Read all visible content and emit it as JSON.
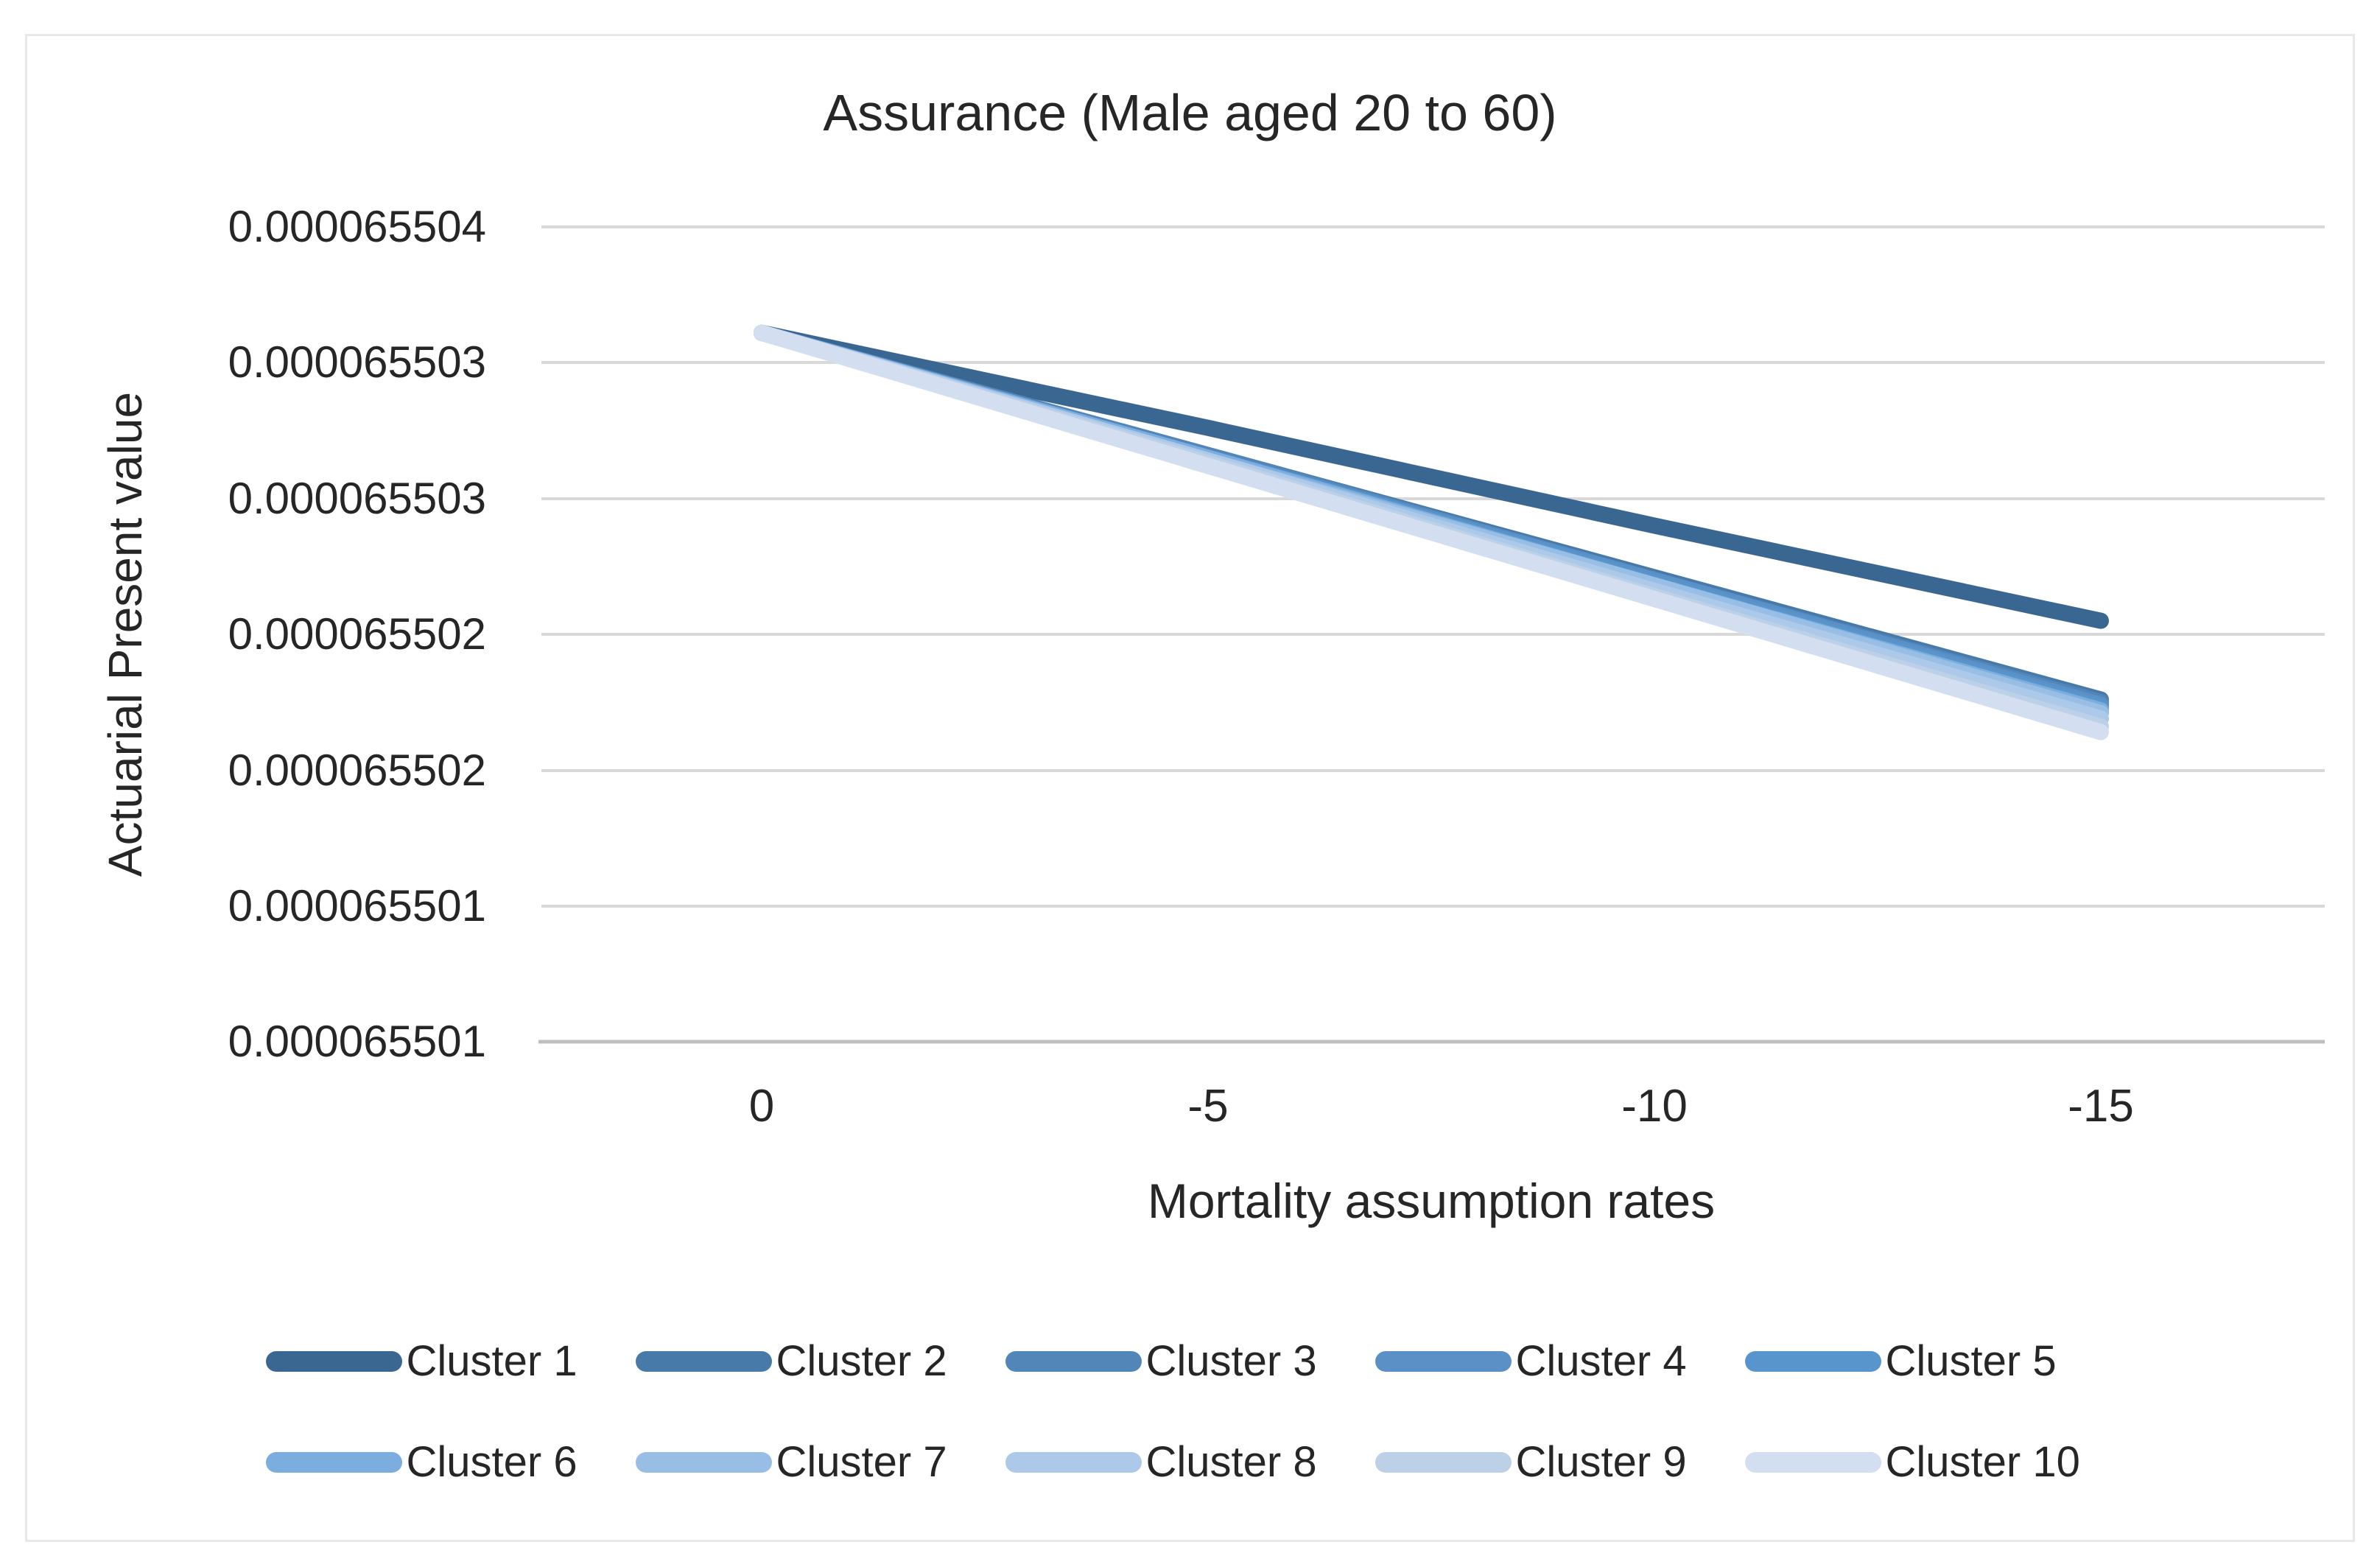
{
  "chart": {
    "title": "Assurance (Male aged 20 to 60)",
    "y_axis": {
      "title": "Actuarial Present value",
      "tick_labels": [
        "0.000065504",
        "0.000065503",
        "0.000065503",
        "0.000065502",
        "0.000065502",
        "0.000065501",
        "0.000065501"
      ]
    },
    "x_axis": {
      "title": "Mortality assumption rates",
      "tick_labels": [
        "0",
        "-5",
        "-10",
        "-15"
      ]
    },
    "colors": {
      "gridline": "#d9d9d9",
      "axis_line": "#bfbfbf",
      "text": "#262626"
    }
  },
  "chart_data": {
    "type": "line",
    "title": "Assurance (Male aged 20 to 60)",
    "xlabel": "Mortality assumption rates",
    "ylabel": "Actuarial Present value",
    "x": [
      0,
      -5,
      -10,
      -15
    ],
    "x_tick_labels": [
      "0",
      "-5",
      "-10",
      "-15"
    ],
    "y_tick_labels_displayed": [
      "0.000065504",
      "0.000065503",
      "0.000065503",
      "0.000065502",
      "0.000065502",
      "0.000065501",
      "0.000065501"
    ],
    "ylim": [
      6.55005e-05,
      6.55035e-05
    ],
    "grid": true,
    "legend_position": "bottom",
    "series": [
      {
        "name": "Cluster 1",
        "color": "#3A6792",
        "values": [
          6.550311e-05,
          6.550276e-05,
          6.55024e-05,
          6.550205e-05
        ]
      },
      {
        "name": "Cluster 2",
        "color": "#477AA8",
        "values": [
          6.550311e-05,
          6.550266e-05,
          6.550221e-05,
          6.550176e-05
        ]
      },
      {
        "name": "Cluster 3",
        "color": "#5286B8",
        "values": [
          6.550311e-05,
          6.550266e-05,
          6.55022e-05,
          6.550175e-05
        ]
      },
      {
        "name": "Cluster 4",
        "color": "#5A90C6",
        "values": [
          6.550311e-05,
          6.550265e-05,
          6.55022e-05,
          6.550174e-05
        ]
      },
      {
        "name": "Cluster 5",
        "color": "#5795CC",
        "values": [
          6.550311e-05,
          6.550265e-05,
          6.550219e-05,
          6.550173e-05
        ]
      },
      {
        "name": "Cluster 6",
        "color": "#7BADDE",
        "values": [
          6.550311e-05,
          6.550265e-05,
          6.550218e-05,
          6.550172e-05
        ]
      },
      {
        "name": "Cluster 7",
        "color": "#98BEE5",
        "values": [
          6.550311e-05,
          6.550264e-05,
          6.550218e-05,
          6.550171e-05
        ]
      },
      {
        "name": "Cluster 8",
        "color": "#ACC9EA",
        "values": [
          6.550311e-05,
          6.550264e-05,
          6.550216e-05,
          6.550169e-05
        ]
      },
      {
        "name": "Cluster 9",
        "color": "#BCD0E8",
        "values": [
          6.550311e-05,
          6.550263e-05,
          6.550214e-05,
          6.550166e-05
        ]
      },
      {
        "name": "Cluster 10",
        "color": "#D3DFF0",
        "values": [
          6.550311e-05,
          6.550262e-05,
          6.550213e-05,
          6.550164e-05
        ]
      }
    ]
  }
}
